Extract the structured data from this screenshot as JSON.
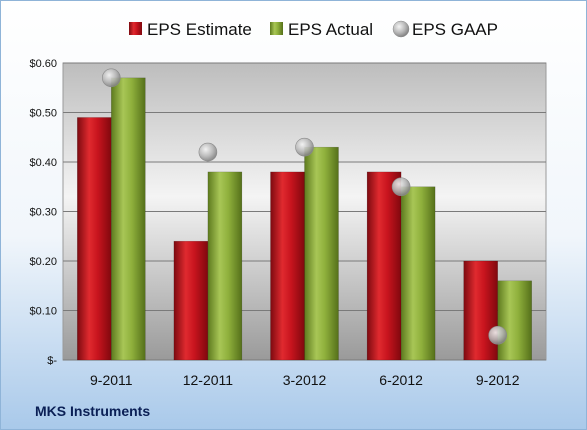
{
  "company": "MKS Instruments",
  "chart_data": {
    "type": "bar",
    "categories": [
      "9-2011",
      "12-2011",
      "3-2012",
      "6-2012",
      "9-2012"
    ],
    "series": [
      {
        "name": "EPS Estimate",
        "kind": "bar",
        "color": "#c8141e",
        "values": [
          0.49,
          0.24,
          0.38,
          0.38,
          0.2
        ]
      },
      {
        "name": "EPS Actual",
        "kind": "bar",
        "color": "#8fb03c",
        "values": [
          0.57,
          0.38,
          0.43,
          0.35,
          0.16
        ]
      },
      {
        "name": "EPS GAAP",
        "kind": "marker",
        "color": "#b0b0b0",
        "values": [
          0.57,
          0.42,
          0.43,
          0.35,
          0.05
        ]
      }
    ],
    "y_ticks": [
      {
        "value": 0.0,
        "label": "$-"
      },
      {
        "value": 0.1,
        "label": "$0.10"
      },
      {
        "value": 0.2,
        "label": "$0.20"
      },
      {
        "value": 0.3,
        "label": "$0.30"
      },
      {
        "value": 0.4,
        "label": "$0.40"
      },
      {
        "value": 0.5,
        "label": "$0.50"
      },
      {
        "value": 0.6,
        "label": "$0.60"
      }
    ],
    "ylim": [
      0,
      0.6
    ],
    "grid": true,
    "legend_position": "top"
  }
}
